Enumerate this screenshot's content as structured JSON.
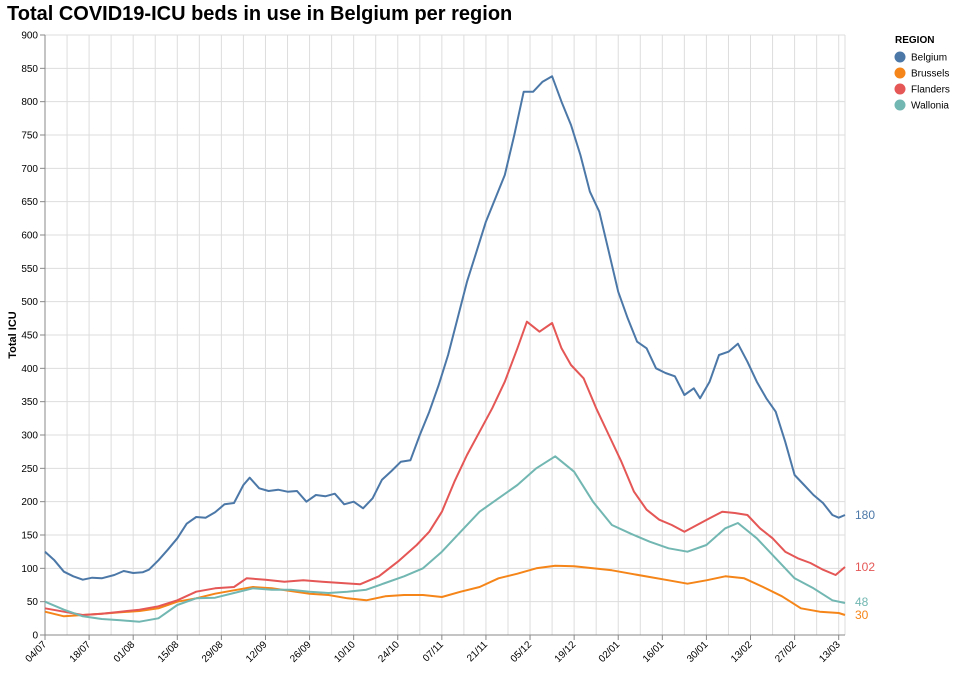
{
  "chart_data": {
    "type": "line",
    "title": "Total COVID19-ICU beds in use in Belgium per region",
    "ylabel": "Total ICU",
    "xlabel": "",
    "ylim": [
      0,
      900
    ],
    "yticks": [
      0,
      50,
      100,
      150,
      200,
      250,
      300,
      350,
      400,
      450,
      500,
      550,
      600,
      650,
      700,
      750,
      800,
      850,
      900
    ],
    "xlim": [
      "2020-07-04",
      "2021-03-15"
    ],
    "xtick_dates": [
      "2020-07-04",
      "2020-07-18",
      "2020-08-01",
      "2020-08-15",
      "2020-08-29",
      "2020-09-12",
      "2020-09-26",
      "2020-10-10",
      "2020-10-24",
      "2020-11-07",
      "2020-11-21",
      "2020-12-05",
      "2020-12-19",
      "2021-01-02",
      "2021-01-16",
      "2021-01-30",
      "2021-02-13",
      "2021-02-27",
      "2021-03-13"
    ],
    "xtick_labels": [
      "04/07",
      "18/07",
      "01/08",
      "15/08",
      "29/08",
      "12/09",
      "26/09",
      "10/10",
      "24/10",
      "07/11",
      "21/11",
      "05/12",
      "19/12",
      "02/01",
      "16/01",
      "30/01",
      "13/02",
      "27/02",
      "13/03"
    ],
    "grid": true,
    "legend": {
      "title": "REGION",
      "position": "right"
    },
    "series": [
      {
        "name": "Belgium",
        "color": "#4c78a8",
        "end_label": "180",
        "points": [
          [
            "2020-07-04",
            125
          ],
          [
            "2020-07-07",
            112
          ],
          [
            "2020-07-10",
            95
          ],
          [
            "2020-07-13",
            88
          ],
          [
            "2020-07-16",
            83
          ],
          [
            "2020-07-19",
            86
          ],
          [
            "2020-07-22",
            85
          ],
          [
            "2020-07-26",
            90
          ],
          [
            "2020-07-29",
            96
          ],
          [
            "2020-08-01",
            93
          ],
          [
            "2020-08-04",
            94
          ],
          [
            "2020-08-06",
            98
          ],
          [
            "2020-08-09",
            112
          ],
          [
            "2020-08-12",
            128
          ],
          [
            "2020-08-15",
            145
          ],
          [
            "2020-08-18",
            167
          ],
          [
            "2020-08-21",
            177
          ],
          [
            "2020-08-24",
            176
          ],
          [
            "2020-08-27",
            184
          ],
          [
            "2020-08-30",
            196
          ],
          [
            "2020-09-02",
            198
          ],
          [
            "2020-09-05",
            225
          ],
          [
            "2020-09-07",
            236
          ],
          [
            "2020-09-10",
            220
          ],
          [
            "2020-09-13",
            216
          ],
          [
            "2020-09-16",
            218
          ],
          [
            "2020-09-19",
            215
          ],
          [
            "2020-09-22",
            216
          ],
          [
            "2020-09-25",
            200
          ],
          [
            "2020-09-28",
            210
          ],
          [
            "2020-10-01",
            208
          ],
          [
            "2020-10-04",
            212
          ],
          [
            "2020-10-07",
            196
          ],
          [
            "2020-10-10",
            200
          ],
          [
            "2020-10-13",
            190
          ],
          [
            "2020-10-16",
            205
          ],
          [
            "2020-10-19",
            233
          ],
          [
            "2020-10-22",
            246
          ],
          [
            "2020-10-25",
            260
          ],
          [
            "2020-10-28",
            262
          ],
          [
            "2020-10-31",
            300
          ],
          [
            "2020-11-03",
            335
          ],
          [
            "2020-11-06",
            375
          ],
          [
            "2020-11-09",
            420
          ],
          [
            "2020-11-12",
            475
          ],
          [
            "2020-11-15",
            530
          ],
          [
            "2020-11-18",
            575
          ],
          [
            "2020-11-21",
            620
          ],
          [
            "2020-11-24",
            655
          ],
          [
            "2020-11-27",
            690
          ],
          [
            "2020-11-30",
            750
          ],
          [
            "2020-12-03",
            815
          ],
          [
            "2020-12-06",
            815
          ],
          [
            "2020-12-09",
            830
          ],
          [
            "2020-12-12",
            838
          ],
          [
            "2020-12-15",
            800
          ],
          [
            "2020-12-18",
            765
          ],
          [
            "2020-12-21",
            720
          ],
          [
            "2020-12-24",
            665
          ],
          [
            "2020-12-27",
            635
          ],
          [
            "2020-12-30",
            575
          ],
          [
            "2021-01-02",
            515
          ],
          [
            "2021-01-05",
            475
          ],
          [
            "2021-01-08",
            440
          ],
          [
            "2021-01-11",
            430
          ],
          [
            "2021-01-14",
            400
          ],
          [
            "2021-01-17",
            393
          ],
          [
            "2021-01-20",
            388
          ],
          [
            "2021-01-23",
            360
          ],
          [
            "2021-01-26",
            370
          ],
          [
            "2021-01-28",
            355
          ],
          [
            "2021-01-31",
            380
          ],
          [
            "2021-02-03",
            420
          ],
          [
            "2021-02-06",
            425
          ],
          [
            "2021-02-09",
            437
          ],
          [
            "2021-02-12",
            410
          ],
          [
            "2021-02-15",
            380
          ],
          [
            "2021-02-18",
            355
          ],
          [
            "2021-02-21",
            335
          ],
          [
            "2021-02-24",
            290
          ],
          [
            "2021-02-27",
            240
          ],
          [
            "2021-03-02",
            225
          ],
          [
            "2021-03-05",
            210
          ],
          [
            "2021-03-08",
            198
          ],
          [
            "2021-03-11",
            180
          ],
          [
            "2021-03-13",
            176
          ],
          [
            "2021-03-15",
            180
          ]
        ]
      },
      {
        "name": "Brussels",
        "color": "#f58518",
        "end_label": "30",
        "points": [
          [
            "2020-07-04",
            35
          ],
          [
            "2020-07-10",
            28
          ],
          [
            "2020-07-16",
            30
          ],
          [
            "2020-07-22",
            32
          ],
          [
            "2020-07-28",
            34
          ],
          [
            "2020-08-03",
            36
          ],
          [
            "2020-08-09",
            40
          ],
          [
            "2020-08-15",
            50
          ],
          [
            "2020-08-21",
            55
          ],
          [
            "2020-08-27",
            62
          ],
          [
            "2020-09-02",
            67
          ],
          [
            "2020-09-08",
            72
          ],
          [
            "2020-09-14",
            70
          ],
          [
            "2020-09-20",
            66
          ],
          [
            "2020-09-26",
            62
          ],
          [
            "2020-10-02",
            60
          ],
          [
            "2020-10-08",
            55
          ],
          [
            "2020-10-14",
            52
          ],
          [
            "2020-10-20",
            58
          ],
          [
            "2020-10-26",
            60
          ],
          [
            "2020-11-01",
            60
          ],
          [
            "2020-11-07",
            57
          ],
          [
            "2020-11-13",
            65
          ],
          [
            "2020-11-19",
            72
          ],
          [
            "2020-11-25",
            85
          ],
          [
            "2020-12-01",
            92
          ],
          [
            "2020-12-07",
            100
          ],
          [
            "2020-12-13",
            104
          ],
          [
            "2020-12-19",
            103
          ],
          [
            "2020-12-25",
            100
          ],
          [
            "2020-12-31",
            97
          ],
          [
            "2021-01-06",
            92
          ],
          [
            "2021-01-12",
            87
          ],
          [
            "2021-01-18",
            82
          ],
          [
            "2021-01-24",
            77
          ],
          [
            "2021-01-30",
            82
          ],
          [
            "2021-02-05",
            88
          ],
          [
            "2021-02-11",
            85
          ],
          [
            "2021-02-17",
            72
          ],
          [
            "2021-02-23",
            58
          ],
          [
            "2021-03-01",
            40
          ],
          [
            "2021-03-07",
            35
          ],
          [
            "2021-03-13",
            33
          ],
          [
            "2021-03-15",
            30
          ]
        ]
      },
      {
        "name": "Flanders",
        "color": "#e45756",
        "end_label": "102",
        "points": [
          [
            "2020-07-04",
            40
          ],
          [
            "2020-07-10",
            35
          ],
          [
            "2020-07-16",
            30
          ],
          [
            "2020-07-22",
            32
          ],
          [
            "2020-07-28",
            35
          ],
          [
            "2020-08-03",
            38
          ],
          [
            "2020-08-09",
            43
          ],
          [
            "2020-08-15",
            52
          ],
          [
            "2020-08-21",
            65
          ],
          [
            "2020-08-27",
            70
          ],
          [
            "2020-09-02",
            72
          ],
          [
            "2020-09-06",
            85
          ],
          [
            "2020-09-12",
            83
          ],
          [
            "2020-09-18",
            80
          ],
          [
            "2020-09-24",
            82
          ],
          [
            "2020-09-30",
            80
          ],
          [
            "2020-10-06",
            78
          ],
          [
            "2020-10-12",
            76
          ],
          [
            "2020-10-18",
            88
          ],
          [
            "2020-10-24",
            110
          ],
          [
            "2020-10-30",
            135
          ],
          [
            "2020-11-03",
            155
          ],
          [
            "2020-11-07",
            185
          ],
          [
            "2020-11-11",
            230
          ],
          [
            "2020-11-15",
            270
          ],
          [
            "2020-11-19",
            305
          ],
          [
            "2020-11-23",
            340
          ],
          [
            "2020-11-27",
            380
          ],
          [
            "2020-12-01",
            430
          ],
          [
            "2020-12-04",
            470
          ],
          [
            "2020-12-08",
            455
          ],
          [
            "2020-12-12",
            468
          ],
          [
            "2020-12-15",
            430
          ],
          [
            "2020-12-18",
            405
          ],
          [
            "2020-12-22",
            385
          ],
          [
            "2020-12-26",
            340
          ],
          [
            "2020-12-30",
            300
          ],
          [
            "2021-01-03",
            260
          ],
          [
            "2021-01-07",
            215
          ],
          [
            "2021-01-11",
            188
          ],
          [
            "2021-01-15",
            173
          ],
          [
            "2021-01-19",
            165
          ],
          [
            "2021-01-23",
            155
          ],
          [
            "2021-01-27",
            165
          ],
          [
            "2021-01-31",
            175
          ],
          [
            "2021-02-04",
            185
          ],
          [
            "2021-02-08",
            183
          ],
          [
            "2021-02-12",
            180
          ],
          [
            "2021-02-16",
            160
          ],
          [
            "2021-02-20",
            145
          ],
          [
            "2021-02-24",
            125
          ],
          [
            "2021-02-28",
            115
          ],
          [
            "2021-03-04",
            108
          ],
          [
            "2021-03-08",
            98
          ],
          [
            "2021-03-12",
            90
          ],
          [
            "2021-03-15",
            102
          ]
        ]
      },
      {
        "name": "Wallonia",
        "color": "#72b7b2",
        "end_label": "48",
        "points": [
          [
            "2020-07-04",
            50
          ],
          [
            "2020-07-10",
            38
          ],
          [
            "2020-07-16",
            28
          ],
          [
            "2020-07-22",
            24
          ],
          [
            "2020-07-28",
            22
          ],
          [
            "2020-08-03",
            20
          ],
          [
            "2020-08-09",
            25
          ],
          [
            "2020-08-15",
            45
          ],
          [
            "2020-08-21",
            55
          ],
          [
            "2020-08-27",
            56
          ],
          [
            "2020-09-02",
            63
          ],
          [
            "2020-09-08",
            70
          ],
          [
            "2020-09-14",
            68
          ],
          [
            "2020-09-20",
            68
          ],
          [
            "2020-09-26",
            65
          ],
          [
            "2020-10-02",
            63
          ],
          [
            "2020-10-08",
            65
          ],
          [
            "2020-10-14",
            68
          ],
          [
            "2020-10-20",
            78
          ],
          [
            "2020-10-26",
            88
          ],
          [
            "2020-11-01",
            100
          ],
          [
            "2020-11-07",
            125
          ],
          [
            "2020-11-13",
            155
          ],
          [
            "2020-11-19",
            185
          ],
          [
            "2020-11-25",
            205
          ],
          [
            "2020-12-01",
            225
          ],
          [
            "2020-12-07",
            250
          ],
          [
            "2020-12-13",
            268
          ],
          [
            "2020-12-19",
            245
          ],
          [
            "2020-12-25",
            200
          ],
          [
            "2020-12-31",
            165
          ],
          [
            "2021-01-06",
            152
          ],
          [
            "2021-01-12",
            140
          ],
          [
            "2021-01-18",
            130
          ],
          [
            "2021-01-24",
            125
          ],
          [
            "2021-01-30",
            135
          ],
          [
            "2021-02-05",
            160
          ],
          [
            "2021-02-09",
            168
          ],
          [
            "2021-02-15",
            145
          ],
          [
            "2021-02-21",
            115
          ],
          [
            "2021-02-27",
            85
          ],
          [
            "2021-03-05",
            70
          ],
          [
            "2021-03-11",
            52
          ],
          [
            "2021-03-15",
            48
          ]
        ]
      }
    ]
  }
}
